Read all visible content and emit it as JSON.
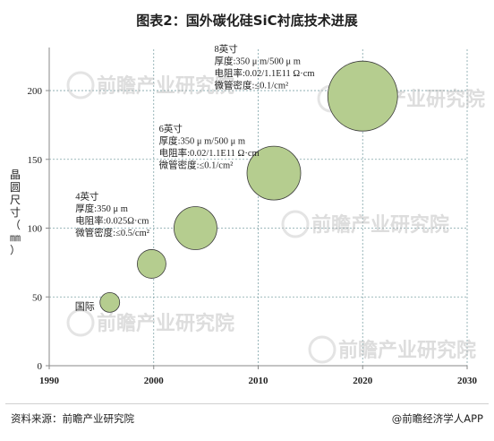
{
  "title": "图表2：国外碳化硅SiC衬底技术进展",
  "ylabel_chars": [
    "晶",
    "圆",
    "尺",
    "寸",
    "（",
    "㎜",
    "）"
  ],
  "source": "资料来源：前瞻产业研究院",
  "brand": "@前瞻经济学人APP",
  "watermark": "前瞻产业研究院",
  "chart_data": {
    "type": "scatter",
    "variant": "bubble",
    "title": "图表2：国外碳化硅SiC衬底技术进展",
    "xlabel": "",
    "ylabel": "晶圆尺寸（㎜）",
    "xlim": [
      1990,
      2030
    ],
    "ylim": [
      0,
      230
    ],
    "xticks": [
      1990,
      2000,
      2010,
      2020,
      2030
    ],
    "yticks": [
      0,
      50,
      100,
      150,
      200
    ],
    "grid": true,
    "bubble_color": "#b5cd8f",
    "bubble_edge": "#3a3a3a",
    "points": [
      {
        "x": 1995.8,
        "y": 46,
        "size": 11,
        "label": "国际"
      },
      {
        "x": 1999.8,
        "y": 74,
        "size": 16
      },
      {
        "x": 2004,
        "y": 100,
        "size": 24
      },
      {
        "x": 2011.5,
        "y": 140,
        "size": 30
      },
      {
        "x": 2020,
        "y": 196,
        "size": 39
      }
    ],
    "annotations": [
      {
        "lines": [
          "4英寸",
          "厚度:350 μ m",
          "电阻率:0.025Ω·cm",
          "微管密度:≤0.5/cm²"
        ],
        "x": 1992.5,
        "y": 121
      },
      {
        "lines": [
          "6英寸",
          "厚度:350 μ m/500 μ m",
          "电阻率:0.02/1.1E11 Ω·cm",
          "微管密度:≤0.1/cm²"
        ],
        "x": 2000.5,
        "y": 170
      },
      {
        "lines": [
          "8英寸",
          "厚度:350 μ m/500 μ m",
          "电阻率:0.02/1.1E11 Ω·cm",
          "微管密度:≤0.1/cm²"
        ],
        "x": 2005.8,
        "y": 228
      }
    ]
  }
}
